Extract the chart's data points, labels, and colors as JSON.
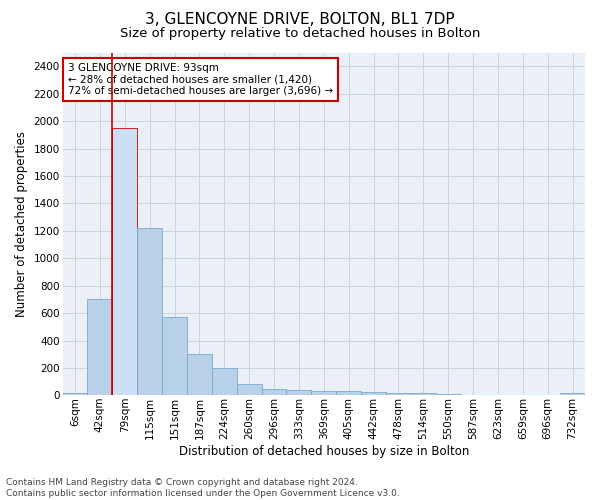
{
  "title": "3, GLENCOYNE DRIVE, BOLTON, BL1 7DP",
  "subtitle": "Size of property relative to detached houses in Bolton",
  "xlabel": "Distribution of detached houses by size in Bolton",
  "ylabel": "Number of detached properties",
  "categories": [
    "6sqm",
    "42sqm",
    "79sqm",
    "115sqm",
    "151sqm",
    "187sqm",
    "224sqm",
    "260sqm",
    "296sqm",
    "333sqm",
    "369sqm",
    "405sqm",
    "442sqm",
    "478sqm",
    "514sqm",
    "550sqm",
    "587sqm",
    "623sqm",
    "659sqm",
    "696sqm",
    "732sqm"
  ],
  "values": [
    15,
    700,
    1950,
    1220,
    575,
    305,
    200,
    80,
    45,
    38,
    35,
    30,
    25,
    20,
    18,
    8,
    0,
    0,
    0,
    0,
    18
  ],
  "bar_color": "#b8d0e8",
  "bar_edge_color": "#7aaace",
  "highlight_bar_index": 2,
  "highlight_bar_color": "#cce0f5",
  "highlight_bar_edge_color": "#cc0000",
  "vline_color": "#cc0000",
  "annotation_text": "3 GLENCOYNE DRIVE: 93sqm\n← 28% of detached houses are smaller (1,420)\n72% of semi-detached houses are larger (3,696) →",
  "annotation_box_color": "#ffffff",
  "annotation_box_edge_color": "#cc0000",
  "ylim": [
    0,
    2500
  ],
  "yticks": [
    0,
    200,
    400,
    600,
    800,
    1000,
    1200,
    1400,
    1600,
    1800,
    2000,
    2200,
    2400
  ],
  "grid_color": "#c8d4e0",
  "bg_color": "#eaf0f6",
  "footer": "Contains HM Land Registry data © Crown copyright and database right 2024.\nContains public sector information licensed under the Open Government Licence v3.0.",
  "title_fontsize": 11,
  "subtitle_fontsize": 9.5,
  "label_fontsize": 8.5,
  "tick_fontsize": 7.5,
  "footer_fontsize": 6.5
}
